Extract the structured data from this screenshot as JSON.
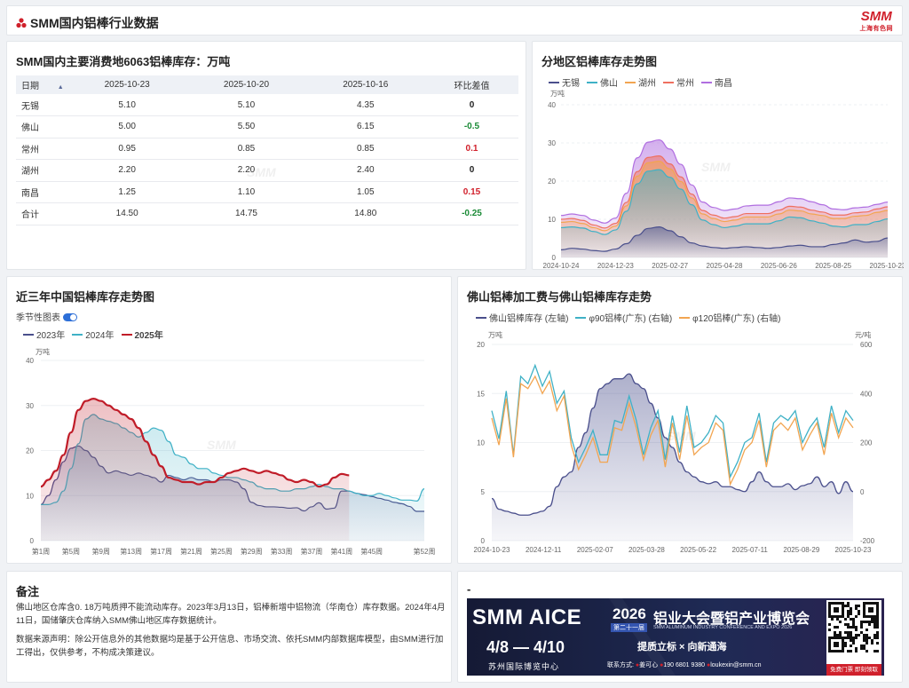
{
  "header": {
    "title": "SMM国内铝棒行业数据",
    "brand": "SMM",
    "brand_sub": "上海有色网"
  },
  "inventory_table": {
    "title": "SMM国内主要消费地6063铝棒库存：万吨",
    "columns": [
      "日期",
      "2025-10-23",
      "2025-10-20",
      "2025-10-16",
      "环比差值"
    ],
    "rows": [
      {
        "name": "无锡",
        "v1": "5.10",
        "v2": "5.10",
        "v3": "4.35",
        "diff": "0",
        "sign": "zero"
      },
      {
        "name": "佛山",
        "v1": "5.00",
        "v2": "5.50",
        "v3": "6.15",
        "diff": "-0.5",
        "sign": "neg"
      },
      {
        "name": "常州",
        "v1": "0.95",
        "v2": "0.85",
        "v3": "0.85",
        "diff": "0.1",
        "sign": "pos"
      },
      {
        "name": "湖州",
        "v1": "2.20",
        "v2": "2.20",
        "v3": "2.40",
        "diff": "0",
        "sign": "zero"
      },
      {
        "name": "南昌",
        "v1": "1.25",
        "v2": "1.10",
        "v3": "1.05",
        "diff": "0.15",
        "sign": "pos"
      },
      {
        "name": "合计",
        "v1": "14.50",
        "v2": "14.75",
        "v3": "14.80",
        "diff": "-0.25",
        "sign": "neg"
      }
    ]
  },
  "region_chart": {
    "title": "分地区铝棒库存走势图",
    "unit": "万吨",
    "watermark": "SMM"
  },
  "yearly_chart": {
    "title": "近三年中国铝棒库存走势图",
    "toggle_label": "季节性图表",
    "unit": "万吨",
    "watermark": "SMM"
  },
  "foshan_chart": {
    "title": "佛山铝棒加工费与佛山铝棒库存走势",
    "unit_left": "万吨",
    "unit_right": "元/吨",
    "watermark": "SMM"
  },
  "notes": {
    "title": "备注",
    "p1": "佛山地区仓库含0. 18万吨质押不能流动库存。2023年3月13日，铝棒新增中铝物流（华南仓）库存数据。2024年4月11日，国储肇庆仓库纳入SMM佛山地区库存数据统计。",
    "p2": "数据来源声明：除公开信息外的其他数据均是基于公开信息、市场交流、依托SMM内部数据库模型，由SMM进行加工得出，仅供参考，不构成决策建议。"
  },
  "ad": {
    "dash": "-",
    "brand": "SMM AICE",
    "year": "2026",
    "edition": "第二十一届",
    "cn_title": "铝业大会暨铝产业博览会",
    "en_title": "SMM ALUMINUM INDUSTRY CONFERENCE AND EXPO 2026",
    "dates": "4/8 — 4/10",
    "venue": "苏州国际博览中心",
    "slogan": "提质立标 × 向新通海",
    "contact_label": "联系方式:",
    "contact_name": "姜可心",
    "phone": "190 6801 9380",
    "email": "loukexin@smm.cn",
    "cta": "免费门票 即刻领取"
  },
  "chart_data": [
    {
      "type": "area",
      "id": "region",
      "title": "分地区铝棒库存走势图",
      "ylabel": "万吨",
      "ylim": [
        0,
        40
      ],
      "yticks": [
        0,
        10,
        20,
        30,
        40
      ],
      "xtick_labels": [
        "2024-10-24",
        "2024-12-23",
        "2025-02-27",
        "2025-04-28",
        "2025-06-26",
        "2025-08-25",
        "2025-10-23"
      ],
      "stacked": true,
      "colors": {
        "无锡": "#4a4f8c",
        "佛山": "#3fb1c6",
        "湖州": "#f2a551",
        "常州": "#ef6f5f",
        "南昌": "#b06ee0"
      },
      "series": [
        {
          "name": "无锡",
          "values": [
            2.0,
            2.4,
            2.2,
            1.8,
            1.6,
            2.2,
            3.6,
            5.8,
            7.6,
            8.0,
            7.0,
            5.4,
            3.8,
            3.0,
            2.6,
            2.4,
            2.6,
            2.8,
            2.6,
            2.4,
            2.6,
            3.0,
            3.2,
            2.8,
            2.8,
            3.4,
            3.8,
            4.6,
            4.0,
            4.2,
            5.1
          ]
        },
        {
          "name": "佛山",
          "values": [
            5.8,
            5.6,
            5.5,
            5.0,
            4.4,
            5.0,
            8.5,
            13.5,
            15.0,
            15.0,
            14.0,
            12.5,
            10.0,
            6.8,
            6.0,
            5.4,
            5.6,
            6.0,
            6.2,
            6.4,
            7.0,
            7.6,
            7.2,
            6.8,
            6.2,
            4.8,
            4.2,
            4.0,
            4.6,
            5.2,
            5.0
          ]
        },
        {
          "name": "湖州",
          "values": [
            1.4,
            1.4,
            1.2,
            1.0,
            1.0,
            1.0,
            1.4,
            2.0,
            2.2,
            2.2,
            2.2,
            2.0,
            1.8,
            1.6,
            1.6,
            1.6,
            1.6,
            1.8,
            1.8,
            1.8,
            1.8,
            1.8,
            1.8,
            1.8,
            2.0,
            2.0,
            2.2,
            2.2,
            2.4,
            2.4,
            2.2
          ]
        },
        {
          "name": "常州",
          "values": [
            0.8,
            0.8,
            0.8,
            0.7,
            0.7,
            0.7,
            0.9,
            1.2,
            1.4,
            1.4,
            1.3,
            1.2,
            1.0,
            0.9,
            0.9,
            0.9,
            0.9,
            0.9,
            0.9,
            0.9,
            1.0,
            1.0,
            1.0,
            1.0,
            0.9,
            0.9,
            0.9,
            0.9,
            0.9,
            0.9,
            0.95
          ]
        },
        {
          "name": "南昌",
          "values": [
            1.0,
            1.2,
            1.3,
            1.3,
            1.3,
            1.4,
            2.4,
            3.6,
            4.0,
            4.2,
            3.9,
            3.3,
            2.4,
            2.2,
            2.0,
            2.0,
            2.0,
            2.0,
            2.2,
            2.2,
            2.2,
            2.2,
            2.2,
            2.2,
            1.9,
            1.6,
            1.4,
            1.3,
            1.3,
            1.2,
            1.25
          ]
        }
      ]
    },
    {
      "type": "line",
      "id": "yearly",
      "title": "近三年中国铝棒库存走势图",
      "ylabel": "万吨",
      "ylim": [
        0,
        40
      ],
      "yticks": [
        0,
        10,
        20,
        30,
        40
      ],
      "xtick_labels": [
        "第1周",
        "第5周",
        "第9周",
        "第13周",
        "第17周",
        "第21周",
        "第25周",
        "第29周",
        "第33周",
        "第37周",
        "第41周",
        "第45周",
        "第52周"
      ],
      "xtick_weeks": [
        1,
        5,
        9,
        13,
        17,
        21,
        25,
        29,
        33,
        37,
        41,
        45,
        52
      ],
      "colors": {
        "2023年": "#4a4f8c",
        "2024年": "#3fb1c6",
        "2025年": "#c01c28"
      },
      "series": [
        {
          "name": "2023年",
          "weeks": [
            1,
            2,
            3,
            4,
            5,
            6,
            7,
            8,
            9,
            10,
            11,
            12,
            13,
            14,
            15,
            16,
            17,
            18,
            19,
            20,
            21,
            22,
            23,
            24,
            25,
            26,
            27,
            28,
            29,
            30,
            31,
            32,
            33,
            34,
            35,
            36,
            37,
            38,
            39,
            40,
            41,
            42,
            43,
            44,
            45,
            46,
            47,
            48,
            49,
            50,
            51,
            52
          ],
          "values": [
            8.0,
            10.0,
            13.5,
            17.5,
            20.5,
            21.0,
            20.0,
            18.5,
            16.5,
            15.0,
            15.5,
            15.0,
            14.5,
            15.0,
            14.5,
            14.0,
            13.0,
            14.5,
            14.0,
            13.5,
            14.0,
            13.5,
            13.5,
            13.0,
            13.5,
            13.5,
            13.0,
            11.5,
            8.5,
            7.8,
            7.5,
            7.5,
            7.4,
            7.2,
            7.3,
            6.6,
            7.5,
            8.4,
            7.0,
            7.2,
            11.0,
            11.0,
            10.5,
            10.2,
            9.8,
            9.4,
            9.0,
            8.5,
            8.2,
            7.6,
            6.5,
            6.5
          ]
        },
        {
          "name": "2024年",
          "weeks": [
            1,
            2,
            3,
            4,
            5,
            6,
            7,
            8,
            9,
            10,
            11,
            12,
            13,
            14,
            15,
            16,
            17,
            18,
            19,
            20,
            21,
            22,
            23,
            24,
            25,
            26,
            27,
            28,
            29,
            30,
            31,
            32,
            33,
            34,
            35,
            36,
            37,
            38,
            39,
            40,
            41,
            42,
            43,
            44,
            45,
            46,
            47,
            48,
            49,
            50,
            51,
            52
          ],
          "values": [
            8.0,
            8.0,
            8.5,
            11.0,
            16.0,
            21.5,
            27.0,
            28.0,
            27.0,
            26.5,
            26.0,
            25.0,
            24.0,
            23.0,
            24.0,
            25.0,
            24.5,
            22.0,
            19.0,
            18.5,
            17.0,
            16.0,
            16.0,
            15.0,
            14.5,
            14.0,
            14.0,
            13.5,
            13.0,
            12.0,
            11.5,
            11.5,
            11.0,
            11.0,
            11.5,
            11.5,
            12.0,
            12.5,
            12.0,
            11.5,
            11.5,
            11.0,
            10.5,
            10.0,
            10.0,
            10.5,
            10.0,
            9.5,
            9.0,
            9.0,
            8.8,
            11.5
          ]
        },
        {
          "name": "2025年",
          "weeks": [
            1,
            2,
            3,
            4,
            5,
            6,
            7,
            8,
            9,
            10,
            11,
            12,
            13,
            14,
            15,
            16,
            17,
            18,
            19,
            20,
            21,
            22,
            23,
            24,
            25,
            26,
            27,
            28,
            29,
            30,
            31,
            32,
            33,
            34,
            35,
            36,
            37,
            38,
            39,
            40,
            41,
            42
          ],
          "values": [
            12.0,
            13.5,
            15.5,
            19.0,
            24.0,
            29.0,
            31.0,
            31.5,
            31.0,
            30.0,
            29.0,
            28.0,
            27.0,
            25.0,
            22.0,
            19.0,
            16.5,
            14.0,
            13.5,
            13.0,
            13.0,
            12.5,
            13.0,
            13.0,
            14.0,
            15.0,
            15.5,
            16.0,
            15.5,
            15.0,
            15.5,
            15.0,
            14.5,
            13.5,
            13.0,
            13.5,
            13.0,
            12.0,
            12.5,
            14.0,
            14.8,
            14.5
          ]
        }
      ]
    },
    {
      "type": "line",
      "id": "foshan",
      "title": "佛山铝棒加工费与佛山铝棒库存走势",
      "ylabel_left": "万吨",
      "ylabel_right": "元/吨",
      "ylim_left": [
        0,
        20
      ],
      "ylim_right": [
        -200,
        600
      ],
      "yticks_left": [
        0,
        5,
        10,
        15,
        20
      ],
      "yticks_right": [
        -200,
        0,
        200,
        400,
        600
      ],
      "xtick_labels": [
        "2024-10-23",
        "2024-12-11",
        "2025-02-07",
        "2025-03-28",
        "2025-05-22",
        "2025-07-11",
        "2025-08-29",
        "2025-10-23"
      ],
      "colors": {
        "佛山铝棒库存 (左轴)": "#4a4f8c",
        "φ90铝棒(广东) (右轴)": "#3fb1c6",
        "φ120铝棒(广东) (右轴)": "#f2a551"
      },
      "series": [
        {
          "name": "佛山铝棒库存 (左轴)",
          "axis": "left",
          "values": [
            4.3,
            3.2,
            3.0,
            2.8,
            2.6,
            2.6,
            2.8,
            3.0,
            3.5,
            5.5,
            6.5,
            7.0,
            9.5,
            11.0,
            13.5,
            15.5,
            16.0,
            16.5,
            16.5,
            17.0,
            16.0,
            15.5,
            14.0,
            12.5,
            10.5,
            9.5,
            8.0,
            7.0,
            6.5,
            6.0,
            5.8,
            6.0,
            5.5,
            5.5,
            5.2,
            5.0,
            6.0,
            7.0,
            6.0,
            5.5,
            5.5,
            5.8,
            5.2,
            5.6,
            5.8,
            6.5,
            5.5,
            6.0,
            4.8,
            6.0,
            5.0
          ]
        },
        {
          "name": "φ90铝棒(广东) (右轴)",
          "axis": "right",
          "values": [
            330,
            215,
            410,
            150,
            470,
            440,
            515,
            430,
            490,
            360,
            410,
            220,
            120,
            180,
            250,
            150,
            150,
            290,
            280,
            390,
            290,
            150,
            260,
            330,
            130,
            310,
            160,
            350,
            180,
            200,
            240,
            310,
            280,
            60,
            120,
            200,
            220,
            320,
            120,
            280,
            310,
            290,
            330,
            200,
            260,
            300,
            180,
            350,
            240,
            330,
            290
          ]
        },
        {
          "name": "φ120铝棒(广东) (右轴)",
          "axis": "right",
          "values": [
            300,
            190,
            380,
            140,
            440,
            420,
            470,
            400,
            450,
            330,
            390,
            190,
            90,
            150,
            220,
            120,
            120,
            260,
            250,
            360,
            260,
            130,
            230,
            290,
            100,
            280,
            130,
            310,
            150,
            180,
            200,
            280,
            250,
            30,
            90,
            170,
            200,
            290,
            100,
            250,
            280,
            250,
            300,
            170,
            230,
            280,
            150,
            320,
            220,
            300,
            260
          ]
        }
      ]
    }
  ]
}
